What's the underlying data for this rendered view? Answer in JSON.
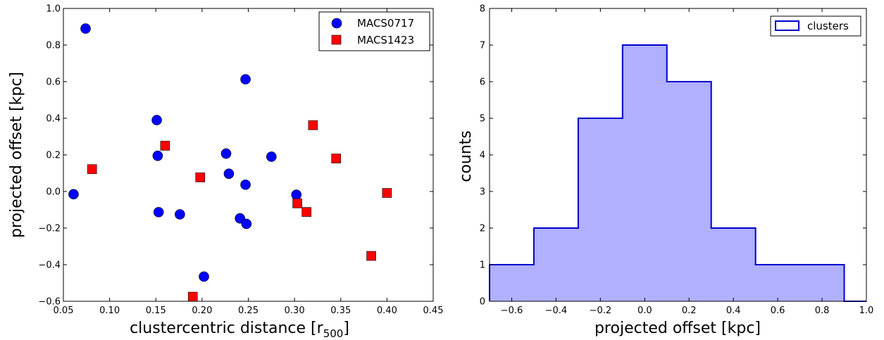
{
  "chart_data": [
    {
      "type": "scatter",
      "title": "",
      "xlabel": "clustercentric distance [r",
      "xlabel_sub": "500",
      "xlabel_close": "]",
      "ylabel": "projected offset [kpc]",
      "xlim": [
        0.05,
        0.45
      ],
      "ylim": [
        -0.6,
        1.0
      ],
      "xticks": [
        "0.05",
        "0.10",
        "0.15",
        "0.20",
        "0.25",
        "0.30",
        "0.35",
        "0.40",
        "0.45"
      ],
      "yticks": [
        "−0.6",
        "−0.4",
        "−0.2",
        "0.0",
        "0.2",
        "0.4",
        "0.6",
        "0.8",
        "1.0"
      ],
      "grid": false,
      "legend_position": "top-right",
      "series": [
        {
          "name": "MACS0717",
          "marker": "circle",
          "color": "#0000ff",
          "points": [
            [
              0.061,
              -0.015
            ],
            [
              0.074,
              0.89
            ],
            [
              0.151,
              0.39
            ],
            [
              0.152,
              0.195
            ],
            [
              0.153,
              -0.113
            ],
            [
              0.176,
              -0.125
            ],
            [
              0.202,
              -0.465
            ],
            [
              0.226,
              0.207
            ],
            [
              0.229,
              0.097
            ],
            [
              0.241,
              -0.147
            ],
            [
              0.247,
              0.613
            ],
            [
              0.247,
              0.037
            ],
            [
              0.248,
              -0.177
            ],
            [
              0.275,
              0.19
            ],
            [
              0.302,
              -0.018
            ]
          ]
        },
        {
          "name": "MACS1423",
          "marker": "square",
          "color": "#ff0000",
          "points": [
            [
              0.081,
              0.122
            ],
            [
              0.16,
              0.25
            ],
            [
              0.19,
              -0.575
            ],
            [
              0.198,
              0.077
            ],
            [
              0.303,
              -0.065
            ],
            [
              0.313,
              -0.112
            ],
            [
              0.32,
              0.362
            ],
            [
              0.345,
              0.18
            ],
            [
              0.383,
              -0.352
            ],
            [
              0.4,
              -0.008
            ]
          ]
        }
      ]
    },
    {
      "type": "histogram",
      "title": "",
      "xlabel": "projected offset [kpc]",
      "ylabel": "counts",
      "xlim": [
        -0.7,
        1.0
      ],
      "ylim": [
        0,
        8
      ],
      "xticks": [
        "−0.6",
        "−0.4",
        "−0.2",
        "0.0",
        "0.2",
        "0.4",
        "0.6",
        "0.8",
        "1.0"
      ],
      "yticks": [
        "0",
        "1",
        "2",
        "3",
        "4",
        "5",
        "6",
        "7",
        "8"
      ],
      "grid": false,
      "legend_position": "top-right",
      "series": [
        {
          "name": "clusters",
          "edge_color": "#0000cc",
          "fill_color": "#b0b0ff",
          "bin_edges": [
            -0.7,
            -0.5,
            -0.3,
            -0.1,
            0.1,
            0.3,
            0.5,
            0.7,
            0.9
          ],
          "counts": [
            1,
            2,
            5,
            7,
            6,
            2,
            1,
            1
          ]
        }
      ]
    }
  ]
}
